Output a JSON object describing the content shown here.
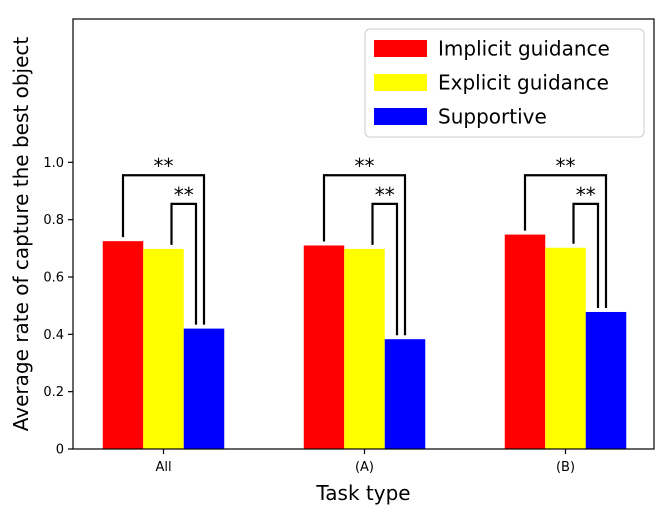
{
  "chart_data": {
    "type": "bar",
    "title": "",
    "xlabel": "Task type",
    "ylabel": "Average rate of capture the best object",
    "categories": [
      "All",
      "(A)",
      "(B)"
    ],
    "series": [
      {
        "name": "Implicit guidance",
        "color": "#ff0000",
        "values": [
          0.725,
          0.71,
          0.748
        ]
      },
      {
        "name": "Explicit guidance",
        "color": "#ffff00",
        "values": [
          0.698,
          0.698,
          0.702
        ]
      },
      {
        "name": "Supportive",
        "color": "#0000ff",
        "values": [
          0.42,
          0.383,
          0.478
        ]
      }
    ],
    "ylim": [
      0,
      1.5
    ],
    "yticks": [
      0,
      0.2,
      0.4,
      0.6,
      0.8,
      1.0
    ],
    "ytick_labels": [
      "0",
      "0.2",
      "0.4",
      "0.6",
      "0.8",
      "1.0"
    ],
    "legend_position": "top-right",
    "grid": false,
    "significance": [
      {
        "category": 0,
        "from_series": 0,
        "to_series": 2,
        "height": 0.955,
        "label": "**"
      },
      {
        "category": 0,
        "from_series": 1,
        "to_series": 2,
        "height": 0.855,
        "label": "**"
      },
      {
        "category": 1,
        "from_series": 0,
        "to_series": 2,
        "height": 0.955,
        "label": "**"
      },
      {
        "category": 1,
        "from_series": 1,
        "to_series": 2,
        "height": 0.855,
        "label": "**"
      },
      {
        "category": 2,
        "from_series": 0,
        "to_series": 2,
        "height": 0.955,
        "label": "**"
      },
      {
        "category": 2,
        "from_series": 1,
        "to_series": 2,
        "height": 0.855,
        "label": "**"
      }
    ]
  }
}
